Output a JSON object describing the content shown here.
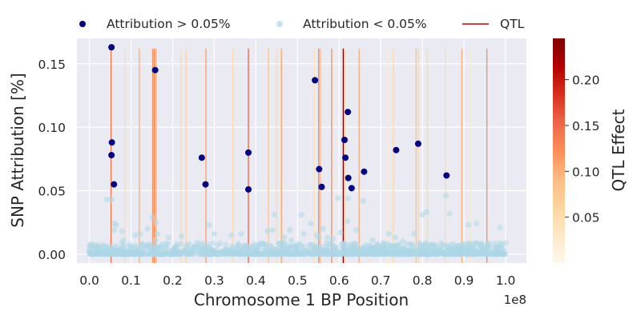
{
  "chart_data": {
    "type": "scatter",
    "xlabel": "Chromosome 1 BP Position",
    "ylabel": "SNP Attribution [%]",
    "x_offset_label": "1e8",
    "x_unit_scale": 100000000,
    "xlim": [
      -0.03,
      1.05
    ],
    "ylim": [
      -0.007,
      0.17
    ],
    "x_ticks": [
      0.0,
      0.1,
      0.2,
      0.3,
      0.4,
      0.5,
      0.6,
      0.7,
      0.8,
      0.9,
      1.0
    ],
    "x_tick_labels": [
      "0.0",
      "0.1",
      "0.2",
      "0.3",
      "0.4",
      "0.5",
      "0.6",
      "0.7",
      "0.8",
      "0.9",
      "1.0"
    ],
    "y_ticks": [
      0.0,
      0.05,
      0.1,
      0.15
    ],
    "y_tick_labels": [
      "0.00",
      "0.05",
      "0.10",
      "0.15"
    ],
    "grid": true,
    "legend": {
      "placement": "top",
      "entries": [
        {
          "label": "Attribution > 0.05%",
          "kind": "marker",
          "color": "#000080"
        },
        {
          "label": "Attribution < 0.05%",
          "kind": "marker",
          "color": "#add8e6"
        },
        {
          "label": "QTL",
          "kind": "line",
          "color": "#c00000"
        }
      ]
    },
    "colorbar": {
      "label": "QTL Effect",
      "range": [
        0.0,
        0.245
      ],
      "ticks": [
        0.05,
        0.1,
        0.15,
        0.2
      ],
      "tick_labels": [
        "0.05",
        "0.10",
        "0.15",
        "0.20"
      ],
      "colormap": "OrRd",
      "colors": [
        "#fff7ec",
        "#fee8c8",
        "#fdd49e",
        "#fdbb84",
        "#fc8d59",
        "#ef6548",
        "#d7301f",
        "#b30000",
        "#7f0000"
      ]
    },
    "series": [
      {
        "name": "Attribution > 0.05%",
        "color": "#000080",
        "x": [
          0.053,
          0.054,
          0.053,
          0.059,
          0.158,
          0.27,
          0.279,
          0.382,
          0.382,
          0.542,
          0.552,
          0.558,
          0.613,
          0.615,
          0.621,
          0.622,
          0.63,
          0.66,
          0.737,
          0.79,
          0.858
        ],
        "y": [
          0.163,
          0.088,
          0.078,
          0.055,
          0.145,
          0.076,
          0.055,
          0.08,
          0.051,
          0.137,
          0.067,
          0.053,
          0.09,
          0.076,
          0.112,
          0.06,
          0.052,
          0.065,
          0.082,
          0.087,
          0.062
        ]
      },
      {
        "name": "Attribution < 0.05%",
        "color": "#add8e6",
        "x": [
          0.042,
          0.054,
          0.06,
          0.065,
          0.059,
          0.078,
          0.082,
          0.11,
          0.122,
          0.14,
          0.151,
          0.16,
          0.163,
          0.158,
          0.191,
          0.205,
          0.221,
          0.259,
          0.288,
          0.3,
          0.341,
          0.365,
          0.371,
          0.428,
          0.44,
          0.445,
          0.468,
          0.482,
          0.485,
          0.51,
          0.515,
          0.532,
          0.546,
          0.551,
          0.561,
          0.572,
          0.585,
          0.597,
          0.603,
          0.622,
          0.62,
          0.641,
          0.658,
          0.68,
          0.72,
          0.735,
          0.752,
          0.78,
          0.8,
          0.81,
          0.857,
          0.865,
          0.911,
          0.93,
          0.986
        ],
        "y": [
          0.043,
          0.043,
          0.024,
          0.023,
          0.019,
          0.018,
          0.011,
          0.015,
          0.016,
          0.02,
          0.029,
          0.025,
          0.016,
          0.011,
          0.013,
          0.006,
          0.014,
          0.009,
          0.023,
          0.016,
          0.015,
          0.016,
          0.006,
          0.018,
          0.019,
          0.031,
          0.013,
          0.019,
          0.011,
          0.031,
          0.016,
          0.024,
          0.015,
          0.013,
          0.02,
          0.013,
          0.012,
          0.044,
          0.017,
          0.044,
          0.026,
          0.019,
          0.042,
          0.011,
          0.016,
          0.013,
          0.01,
          0.016,
          0.031,
          0.033,
          0.046,
          0.032,
          0.023,
          0.024,
          0.021
        ]
      }
    ],
    "qtl_lines": {
      "name": "QTL",
      "x": [
        0.052,
        0.085,
        0.12,
        0.152,
        0.156,
        0.16,
        0.22,
        0.232,
        0.28,
        0.345,
        0.382,
        0.43,
        0.45,
        0.46,
        0.462,
        0.54,
        0.551,
        0.555,
        0.582,
        0.61,
        0.613,
        0.648,
        0.718,
        0.73,
        0.785,
        0.79,
        0.812,
        0.855,
        0.895,
        0.915,
        0.955
      ],
      "effect": [
        0.14,
        0.05,
        0.1,
        0.12,
        0.13,
        0.1,
        0.05,
        0.06,
        0.11,
        0.05,
        0.15,
        0.08,
        0.05,
        0.06,
        0.1,
        0.04,
        0.13,
        0.09,
        0.12,
        0.24,
        0.06,
        0.1,
        0.02,
        0.05,
        0.08,
        0.06,
        0.05,
        0.05,
        0.1,
        0.03,
        0.12
      ]
    }
  }
}
